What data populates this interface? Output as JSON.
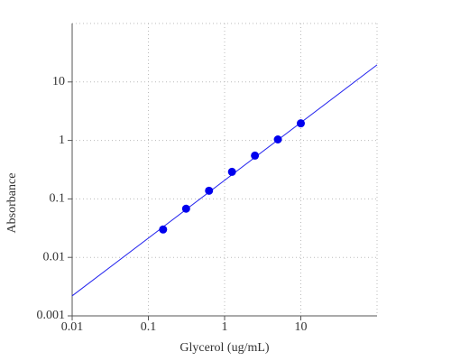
{
  "chart_data": {
    "type": "scatter",
    "x_label": "Glycerol (ug/mL)",
    "y_label": "Absorbance",
    "xscale": "log",
    "yscale": "log",
    "xlim": [
      0.01,
      100
    ],
    "ylim": [
      0.001,
      100
    ],
    "xticks": [
      0.01,
      0.1,
      1,
      10
    ],
    "yticks": [
      0.001,
      0.01,
      0.1,
      1,
      10
    ],
    "grid": true,
    "series": [
      {
        "color": "#0000ee",
        "x": [
          0.156,
          0.3125,
          0.625,
          1.25,
          2.5,
          5,
          10
        ],
        "values": [
          0.03,
          0.068,
          0.138,
          0.29,
          0.55,
          1.04,
          1.96
        ]
      }
    ],
    "fit": {
      "color": "#2222ee",
      "x": [
        0.01,
        100
      ],
      "values": [
        0.0022,
        19.6
      ]
    }
  }
}
